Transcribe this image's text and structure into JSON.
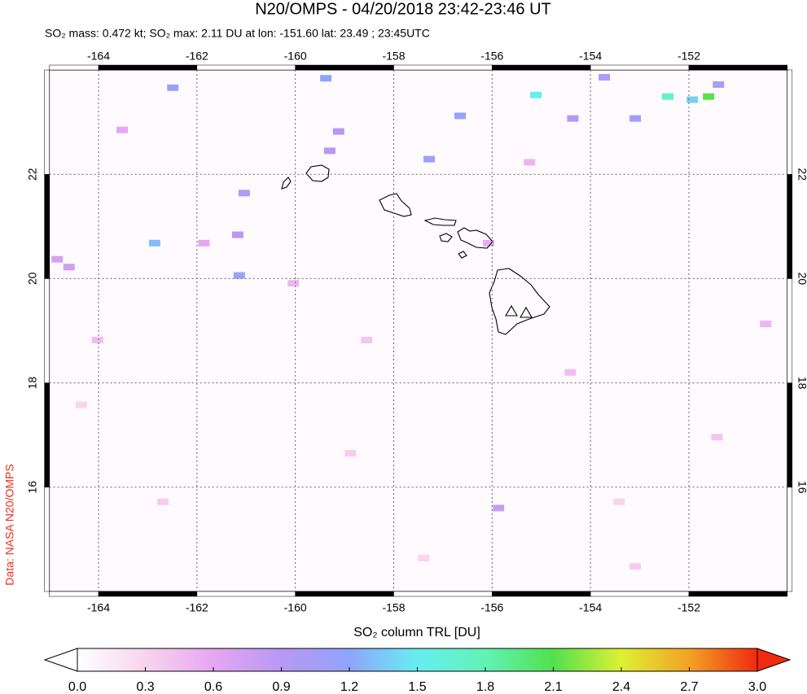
{
  "chart_data": {
    "type": "map",
    "title": "N20/OMPS - 04/20/2018 23:42-23:46 UT",
    "subtitle": "SO₂ mass: 0.472 kt; SO₂ max: 2.11 DU at lon: -151.60 lat: 23.49 ; 23:45UTC",
    "source": "Data: NASA N20/OMPS",
    "colorbar_label": "SO₂ column TRL [DU]",
    "xlim": [
      -165,
      -150
    ],
    "ylim": [
      14,
      24
    ],
    "xticks": [
      -164,
      -162,
      -160,
      -158,
      -156,
      -154,
      -152
    ],
    "yticks": [
      16,
      18,
      20,
      22
    ],
    "grid": true,
    "lon": [
      -151.6,
      -152.43,
      -151.93,
      -151.4,
      -155.11,
      -159.38,
      -162.49,
      -153.72,
      -153.09,
      -154.36,
      -156.65,
      -157.28,
      -162.86,
      -161.14,
      -161.04,
      -161.17,
      -159.12,
      -159.3,
      -155.87,
      -164.6,
      -164.84,
      -163.52,
      -161.86,
      -160.04,
      -158.55,
      -154.41,
      -151.43,
      -162.69,
      -157.39,
      -153.09,
      -150.44,
      -164.35,
      -156.07,
      -155.24,
      -164.02,
      -153.42,
      -158.88
    ],
    "lat": [
      23.49,
      23.49,
      23.43,
      23.72,
      23.52,
      23.84,
      23.66,
      23.86,
      23.07,
      23.07,
      23.12,
      22.29,
      20.68,
      20.06,
      21.64,
      20.84,
      22.82,
      22.45,
      15.6,
      20.22,
      20.37,
      22.85,
      20.68,
      19.91,
      18.82,
      18.2,
      16.96,
      15.72,
      14.64,
      14.48,
      19.13,
      17.58,
      20.68,
      22.23,
      18.82,
      15.72,
      16.65
    ],
    "values": [
      2.11,
      1.72,
      1.38,
      1.02,
      1.5,
      1.2,
      1.1,
      1.0,
      1.05,
      0.95,
      1.15,
      1.1,
      1.3,
      1.1,
      1.0,
      0.9,
      0.9,
      0.9,
      0.8,
      0.75,
      0.7,
      0.6,
      0.6,
      0.5,
      0.4,
      0.45,
      0.4,
      0.35,
      0.3,
      0.35,
      0.5,
      0.3,
      0.55,
      0.5,
      0.45,
      0.3,
      0.35
    ],
    "clim": [
      0,
      3
    ],
    "cticks": [
      {
        "value": 0,
        "label": "0.0"
      },
      0.3,
      0.6,
      0.9,
      1.2,
      1.5,
      1.8,
      2.1,
      2.4,
      2.7,
      {
        "value": 3,
        "label": "3.0"
      }
    ],
    "colormap": [
      "#ffffff",
      "#f8d4ee",
      "#e6a6f2",
      "#b898f4",
      "#90a4fc",
      "#66eef2",
      "#62f2b4",
      "#52e04e",
      "#def032",
      "#f2a224",
      "#f02a10"
    ]
  }
}
